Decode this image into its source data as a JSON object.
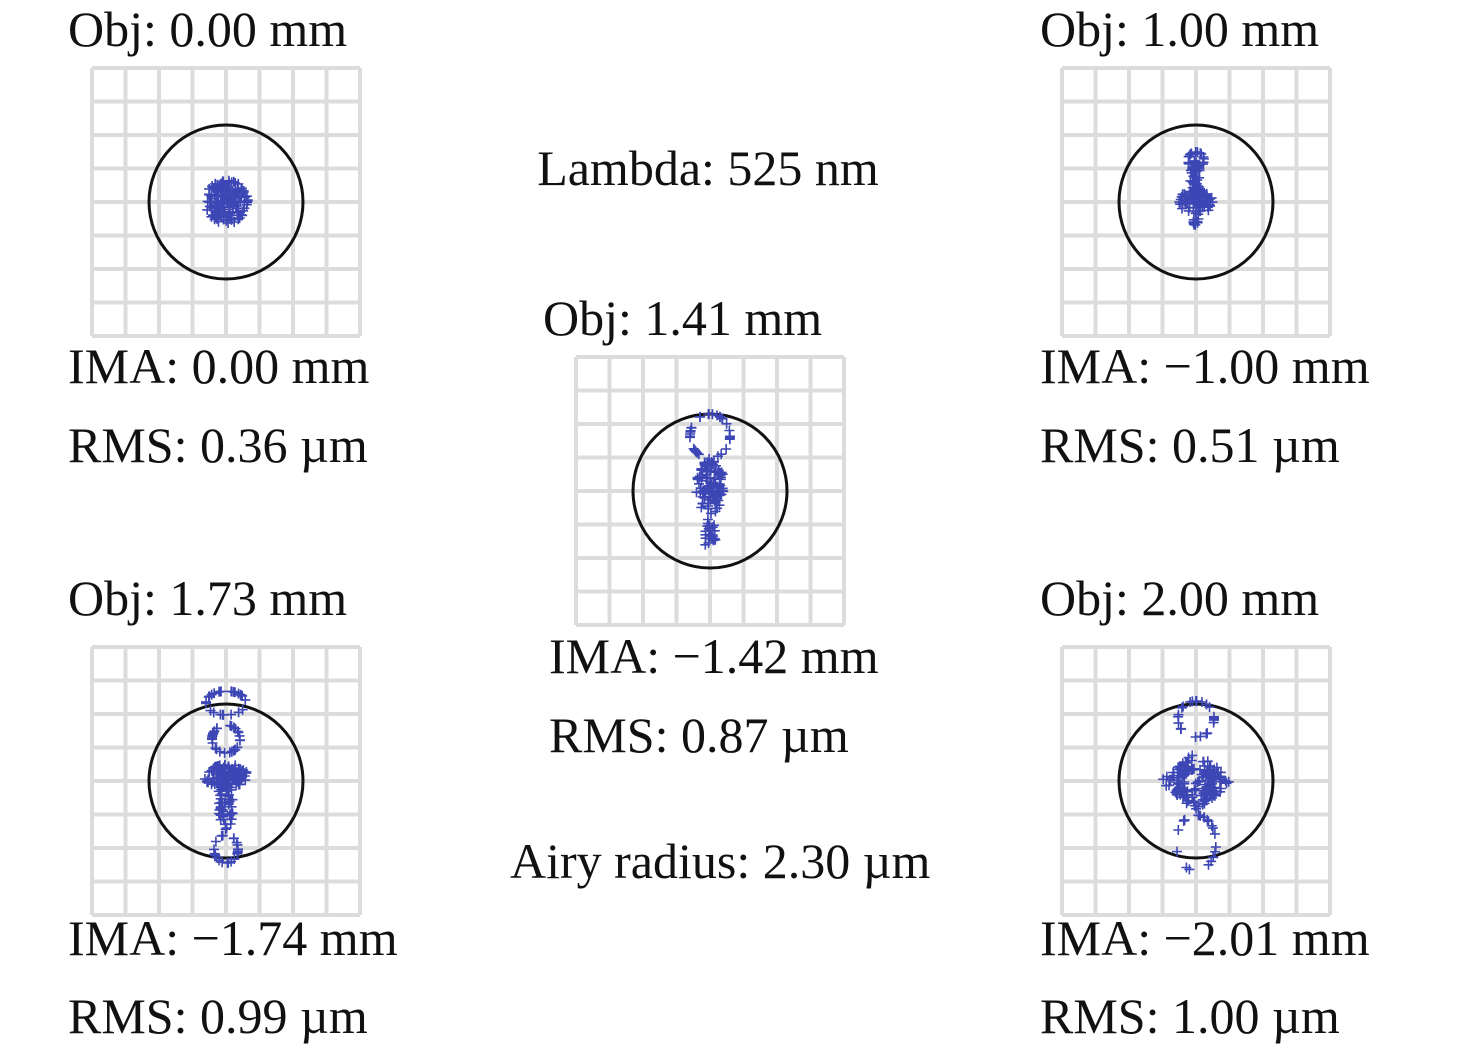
{
  "lambda": "Lambda: 525 nm",
  "airy_radius": "Airy radius: 2.30 µm",
  "panels": [
    {
      "obj": "Obj: 0.00 mm",
      "ima": "IMA: 0.00 mm",
      "rms": "RMS: 0.36 µm"
    },
    {
      "obj": "Obj: 1.00 mm",
      "ima": "IMA: −1.00 mm",
      "rms": "RMS: 0.51 µm"
    },
    {
      "obj": "Obj: 1.41 mm",
      "ima": "IMA: −1.42 mm",
      "rms": "RMS: 0.87 µm"
    },
    {
      "obj": "Obj: 1.73 mm",
      "ima": "IMA: −1.74 mm",
      "rms": "RMS: 0.99 µm"
    },
    {
      "obj": "Obj: 2.00 mm",
      "ima": "IMA: −2.01 mm",
      "rms": "RMS: 1.00 µm"
    }
  ]
}
